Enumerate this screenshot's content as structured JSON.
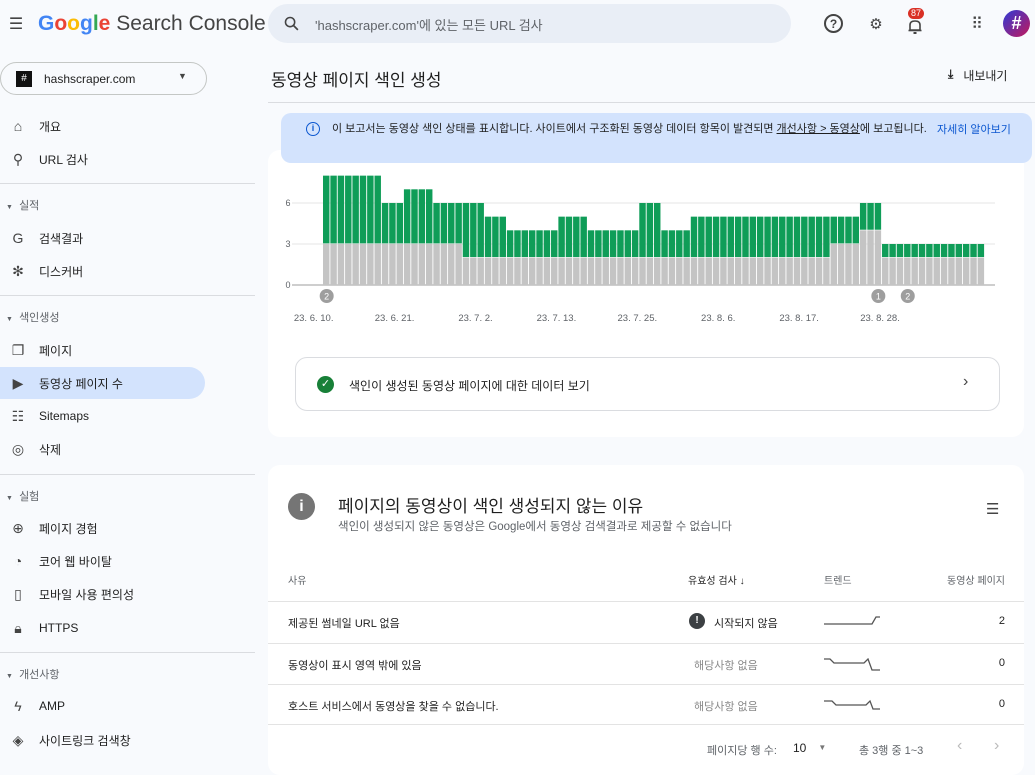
{
  "header": {
    "app_name": "Search Console",
    "google": "Google",
    "search_placeholder": "'hashscraper.com'에 있는 모든 URL 검사",
    "notification_count": "87",
    "avatar": "#"
  },
  "property": {
    "name": "hashscraper.com"
  },
  "sidebar": {
    "items": [
      {
        "label": "개요",
        "icon": "home-icon"
      },
      {
        "label": "URL 검사",
        "icon": "search-icon"
      },
      {
        "section": "실적"
      },
      {
        "label": "검색결과",
        "icon": "google-icon"
      },
      {
        "label": "디스커버",
        "icon": "asterisk-icon"
      },
      {
        "section": "색인생성"
      },
      {
        "label": "페이지",
        "icon": "pages-icon"
      },
      {
        "label": "동영상 페이지 수",
        "icon": "video-page-icon",
        "selected": true
      },
      {
        "label": "Sitemaps",
        "icon": "sitemap-icon"
      },
      {
        "label": "삭제",
        "icon": "eye-off-icon"
      },
      {
        "section": "실험"
      },
      {
        "label": "페이지 경험",
        "icon": "plus-circle-icon"
      },
      {
        "label": "코어 웹 바이탈",
        "icon": "gauge-icon"
      },
      {
        "label": "모바일 사용 편의성",
        "icon": "phone-icon"
      },
      {
        "label": "HTTPS",
        "icon": "lock-icon"
      },
      {
        "section": "개선사항"
      },
      {
        "label": "AMP",
        "icon": "bolt-icon"
      },
      {
        "label": "사이트링크 검색창",
        "icon": "layers-icon"
      }
    ]
  },
  "page": {
    "title": "동영상 페이지 색인 생성",
    "export_label": "내보내기",
    "info": {
      "text": "이 보고서는 동영상 색인 상태를 표시합니다. 사이트에서 구조화된 동영상 데이터 항목이 발견되면 ",
      "link": "개선사항 > 동영상",
      "text2": "에 보",
      "text3": "고됩니다.",
      "learn_more": "자세히 알아보기"
    },
    "indexed_link": "색인이 생성된 동영상 페이지에 대한 데이터 보기"
  },
  "colors": {
    "green": "#0f9d58",
    "gray": "#c4c4c4",
    "accent": "#0b57d0",
    "selected": "#d3e3fd"
  },
  "chart_data": {
    "type": "bar",
    "stacked": true,
    "grid": true,
    "yticks": [
      "0",
      "3",
      "6"
    ],
    "ylim": [
      0,
      8
    ],
    "xtick_labels": [
      "23. 6. 10.",
      "23. 6. 21.",
      "23. 7. 2.",
      "23. 7. 13.",
      "23. 7. 25.",
      "23. 8. 6.",
      "23. 8. 17.",
      "23. 8. 28."
    ],
    "start_date": "2023-06-10",
    "gray_values": [
      3,
      3,
      3,
      3,
      3,
      3,
      3,
      3,
      3,
      3,
      3,
      3,
      3,
      3,
      3,
      3,
      3,
      3,
      3,
      2,
      2,
      2,
      2,
      2,
      2,
      2,
      2,
      2,
      2,
      2,
      2,
      2,
      2,
      2,
      2,
      2,
      2,
      2,
      2,
      2,
      2,
      2,
      2,
      2,
      2,
      2,
      2,
      2,
      2,
      2,
      2,
      2,
      2,
      2,
      2,
      2,
      2,
      2,
      2,
      2,
      2,
      2,
      2,
      2,
      2,
      2,
      2,
      2,
      2,
      3,
      3,
      3,
      3,
      4,
      4,
      4,
      2,
      2,
      2,
      2,
      2,
      2,
      2,
      2,
      2,
      2,
      2,
      2,
      2,
      2
    ],
    "total_values": [
      8,
      8,
      8,
      8,
      8,
      8,
      8,
      8,
      6,
      6,
      6,
      7,
      7,
      7,
      7,
      6,
      6,
      6,
      6,
      6,
      6,
      6,
      5,
      5,
      5,
      4,
      4,
      4,
      4,
      4,
      4,
      4,
      5,
      5,
      5,
      5,
      4,
      4,
      4,
      4,
      4,
      4,
      4,
      6,
      6,
      6,
      4,
      4,
      4,
      4,
      5,
      5,
      5,
      5,
      5,
      5,
      5,
      5,
      5,
      5,
      5,
      5,
      5,
      5,
      5,
      5,
      5,
      5,
      5,
      5,
      5,
      5,
      5,
      6,
      6,
      6,
      3,
      3,
      3,
      3,
      3,
      3,
      3,
      3,
      3,
      3,
      3,
      3,
      3,
      3
    ],
    "annotations": [
      {
        "index": 0,
        "label": "2"
      },
      {
        "index": 75,
        "label": "1"
      },
      {
        "index": 79,
        "label": "2"
      }
    ]
  },
  "reasons": {
    "title": "페이지의 동영상이 색인 생성되지 않는 이유",
    "subtitle": "색인이 생성되지 않은 동영상은 Google에서 동영상 검색결과로 제공할 수 없습니다",
    "columns": [
      "사유",
      "유효성 검사",
      "트렌드",
      "동영상 페이지"
    ],
    "rows": [
      {
        "reason": "제공된 썸네일 URL 없음",
        "validation": "시작되지 않음",
        "pages": "2"
      },
      {
        "reason": "동영상이 표시 영역 밖에 있음",
        "validation": "해당사항 없음",
        "pages": "0"
      },
      {
        "reason": "호스트 서비스에서 동영상을 찾을 수 없습니다.",
        "validation": "해당사항 없음",
        "pages": "0"
      }
    ],
    "rows_per_page_label": "페이지당 행 수:",
    "rows_per_page": "10",
    "range": "총 3행 중 1~3"
  }
}
